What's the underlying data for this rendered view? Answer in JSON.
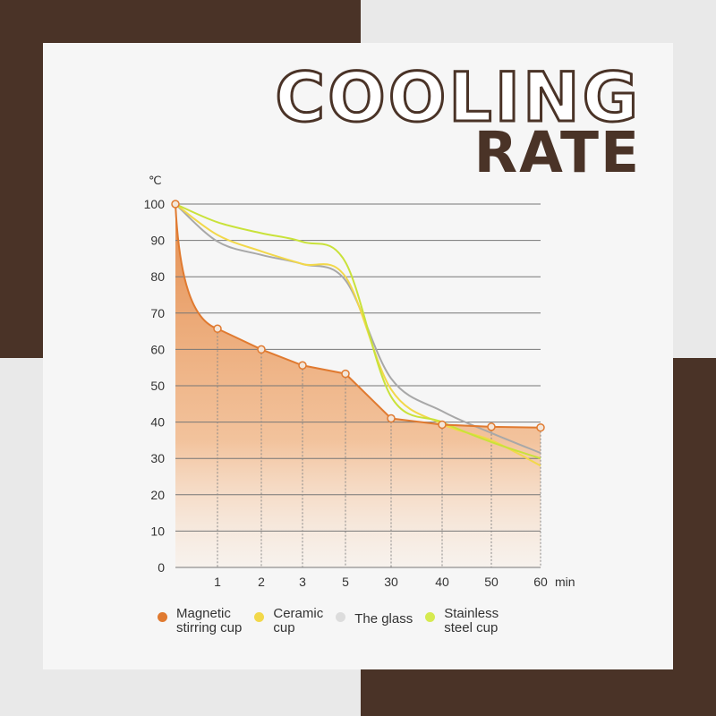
{
  "title": {
    "line1": "COOLING",
    "line2": "RATE"
  },
  "colors": {
    "brown": "#4a3327",
    "magnetic": "#e07a30",
    "ceramic": "#f2d84a",
    "glass": "#c8c8c8",
    "stainless": "#c9e23a"
  },
  "chart_data": {
    "type": "line",
    "ylabel": "℃",
    "xunit": "min",
    "categories": [
      "0",
      "1",
      "2",
      "3",
      "5",
      "30",
      "40",
      "50",
      "60"
    ],
    "x_tick_labels": [
      "1",
      "2",
      "3",
      "5",
      "30",
      "40",
      "50",
      "60"
    ],
    "y_ticks": [
      "0",
      "10",
      "20",
      "30",
      "40",
      "50",
      "60",
      "70",
      "80",
      "90",
      "100"
    ],
    "ylim": [
      0,
      100
    ],
    "grid": "horizontal",
    "legend_placement": "bottom",
    "series": [
      {
        "name": "Magnetic\nstirring cup",
        "values": [
          100,
          65.7,
          60,
          55.6,
          53.3,
          41,
          39.3,
          38.7,
          38.5
        ],
        "fill": true
      },
      {
        "name": "Ceramic\ncup",
        "values": [
          100,
          91.5,
          87,
          83.5,
          80,
          49,
          39.5,
          35,
          28
        ]
      },
      {
        "name": "The glass",
        "values": [
          100,
          89.7,
          86,
          83.5,
          79,
          52,
          43,
          37,
          31.5
        ]
      },
      {
        "name": "Stainless\nsteel cup",
        "values": [
          100,
          95,
          92,
          89.6,
          84,
          47,
          40,
          34.5,
          30
        ]
      }
    ]
  }
}
